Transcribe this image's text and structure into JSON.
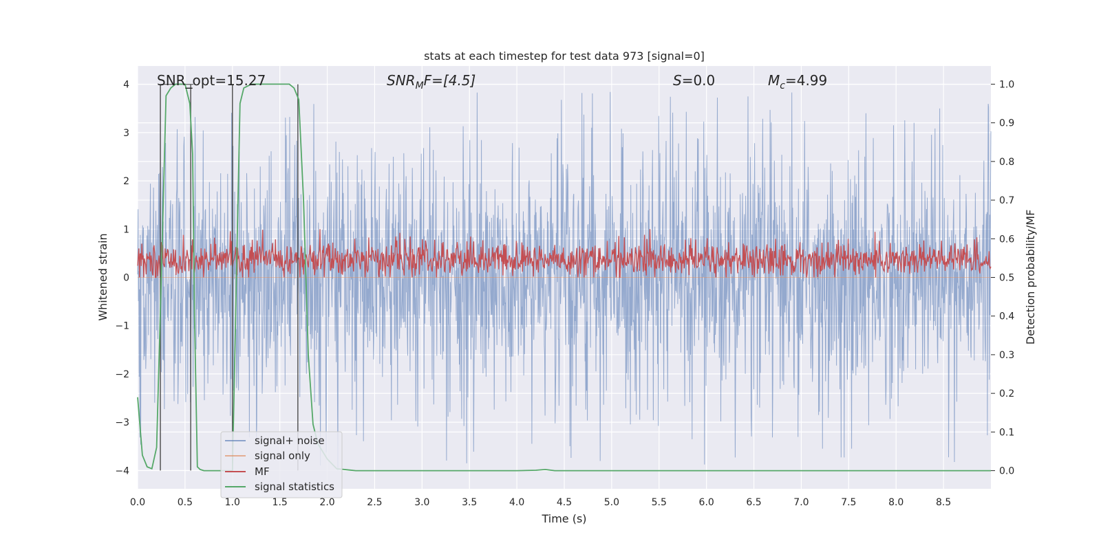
{
  "chart_data": {
    "type": "line",
    "title": "stats at each timestep for test data 973 [signal=0]",
    "xlabel": "Time (s)",
    "ylabel": "Whitened strain",
    "ylabel_right": "Detection probability/MF",
    "xlim": [
      0.0,
      9.0
    ],
    "ylim": [
      -4.38,
      4.38
    ],
    "ylim_right": [
      -0.047,
      1.047
    ],
    "x_ticks": [
      "0.0",
      "0.5",
      "1.0",
      "1.5",
      "2.0",
      "2.5",
      "3.0",
      "3.5",
      "4.0",
      "4.5",
      "5.0",
      "5.5",
      "6.0",
      "6.5",
      "7.0",
      "7.5",
      "8.0",
      "8.5"
    ],
    "y_ticks": [
      "4",
      "3",
      "2",
      "1",
      "0",
      "−1",
      "−2",
      "−3",
      "−4"
    ],
    "y_ticks_right": [
      "1.0",
      "0.9",
      "0.8",
      "0.7",
      "0.6",
      "0.5",
      "0.4",
      "0.3",
      "0.2",
      "0.1",
      "0.0"
    ],
    "grid": true,
    "legend_position": "lower-left",
    "background": "#eaeaf2",
    "annotations": [
      {
        "prefix": "SNR_opt=15.27",
        "sub": "",
        "suffix": "",
        "italic": false
      },
      {
        "prefix": "SNR",
        "sub": "M",
        "suffix": "F=[4.5]",
        "italic": true
      },
      {
        "prefix": "S",
        "sub": "",
        "suffix": "=0.0",
        "italic": true
      },
      {
        "prefix": "M",
        "sub": "c",
        "suffix": "=4.99",
        "italic": true
      }
    ],
    "series": [
      {
        "name": "signal+ noise",
        "color": "#4c72b0",
        "axis": "left",
        "style": "dense noise, amplitude roughly ±3, occasional spikes near ±4"
      },
      {
        "name": "signal only",
        "color": "#dd8452",
        "axis": "left",
        "style": "flat at 0"
      },
      {
        "name": "MF",
        "color": "#c44e52",
        "axis": "right",
        "style": "noise band between about 0.50 and 0.62, peak about 0.63"
      },
      {
        "name": "signal statistics",
        "color": "#55a868",
        "axis": "right",
        "x": [
          0.0,
          0.05,
          0.1,
          0.15,
          0.2,
          0.25,
          0.3,
          0.35,
          0.4,
          0.45,
          0.5,
          0.55,
          0.58,
          0.6,
          0.63,
          0.66,
          0.7,
          0.75,
          0.9,
          1.0,
          1.05,
          1.08,
          1.12,
          1.2,
          1.4,
          1.6,
          1.65,
          1.7,
          1.75,
          1.8,
          1.85,
          1.9,
          2.0,
          2.1,
          2.3,
          3.0,
          4.0,
          4.2,
          4.3,
          4.4,
          5.0,
          9.0
        ],
        "y": [
          0.19,
          0.04,
          0.01,
          0.005,
          0.06,
          0.5,
          0.97,
          0.99,
          1.0,
          1.0,
          1.0,
          0.95,
          0.82,
          0.4,
          0.01,
          0.003,
          0.0,
          0.0,
          0.0,
          0.0,
          0.6,
          0.95,
          0.99,
          1.0,
          1.0,
          1.0,
          0.99,
          0.96,
          0.7,
          0.3,
          0.12,
          0.07,
          0.03,
          0.005,
          0.0,
          0.0,
          0.0,
          0.001,
          0.003,
          0.0,
          0.0,
          0.0
        ]
      }
    ],
    "vertical_lines_x": [
      0.24,
      0.56,
      1.0,
      1.69
    ]
  }
}
